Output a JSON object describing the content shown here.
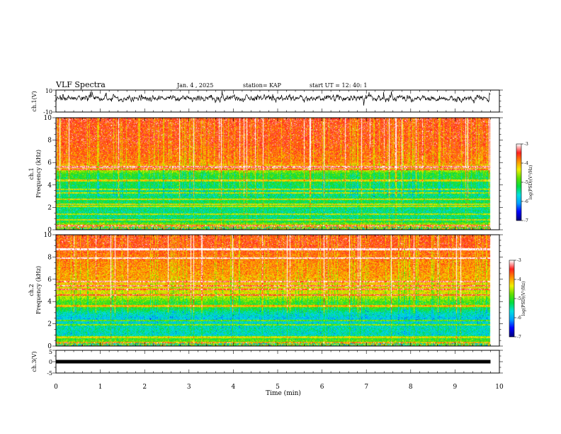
{
  "header": {
    "title": "VLF Spectra",
    "date": "Jan. 4 , 2025",
    "station": "station= KAP",
    "start": "start UT =  12: 40: 1"
  },
  "chart_data": [
    {
      "type": "line",
      "name": "ch1-waveform",
      "ylabel": "ch.1(V)",
      "ylim": [
        -10,
        10
      ],
      "yticks": [
        10,
        -10
      ],
      "xlim": [
        0,
        10
      ],
      "x_end": 9.8,
      "mean": 2.5,
      "spread": 2.0
    },
    {
      "type": "heatmap",
      "name": "ch1-spectrogram",
      "ylabel_top": "ch.1",
      "ylabel": "Frequency (kHz)",
      "ylim": [
        0,
        10
      ],
      "yticks": [
        0,
        2,
        4,
        6,
        8,
        10
      ],
      "xlim": [
        0,
        10
      ],
      "x_end": 9.8,
      "value_range": [
        -7,
        -3
      ],
      "colorbar": {
        "label": "log(PSD)(V²/Hz)",
        "ticks": [
          -3,
          -4,
          -5,
          -6,
          -7
        ]
      },
      "level_profile": [
        [
          0,
          -5.0
        ],
        [
          0.3,
          -4.2
        ],
        [
          0.8,
          -5.3
        ],
        [
          1.5,
          -5.4
        ],
        [
          2.0,
          -5.3
        ],
        [
          2.5,
          -5.2
        ],
        [
          3.0,
          -5.3
        ],
        [
          3.5,
          -5.4
        ],
        [
          4.0,
          -5.2
        ],
        [
          4.5,
          -5.1
        ],
        [
          5.0,
          -5.0
        ],
        [
          5.5,
          -4.2
        ],
        [
          6.0,
          -3.8
        ],
        [
          7.0,
          -3.7
        ],
        [
          8.0,
          -3.6
        ],
        [
          9.0,
          -3.6
        ],
        [
          10.0,
          -3.5
        ]
      ],
      "lines_khz": [
        0.4,
        0.9,
        1.4,
        2.1,
        2.3,
        2.7,
        3.3,
        3.6,
        4.4,
        5.4,
        5.6
      ]
    },
    {
      "type": "heatmap",
      "name": "ch2-spectrogram",
      "ylabel_top": "ch.2",
      "ylabel": "Frequency (kHz)",
      "ylim": [
        0,
        10
      ],
      "yticks": [
        0,
        2,
        4,
        6,
        8,
        10
      ],
      "xlim": [
        0,
        10
      ],
      "x_end": 9.8,
      "value_range": [
        -7,
        -3
      ],
      "colorbar": {
        "label": "log(PSD)(V²/Hz)",
        "ticks": [
          -3,
          -4,
          -5,
          -6,
          -7
        ]
      },
      "level_profile": [
        [
          0,
          -5.0
        ],
        [
          0.5,
          -4.8
        ],
        [
          1.0,
          -5.6
        ],
        [
          1.5,
          -5.5
        ],
        [
          2.0,
          -5.6
        ],
        [
          2.5,
          -5.8
        ],
        [
          3.0,
          -5.5
        ],
        [
          3.5,
          -5.0
        ],
        [
          4.0,
          -4.9
        ],
        [
          4.5,
          -4.4
        ],
        [
          5.0,
          -4.3
        ],
        [
          5.5,
          -4.2
        ],
        [
          6.0,
          -4.0
        ],
        [
          7.0,
          -3.9
        ],
        [
          8.0,
          -3.8
        ],
        [
          9.0,
          -3.6
        ],
        [
          10.0,
          -3.6
        ]
      ],
      "lines_khz": [
        0.3,
        0.8,
        1.9,
        2.3,
        3.6,
        4.6,
        5.1,
        5.4,
        5.8,
        7.9,
        8.7
      ]
    },
    {
      "type": "line",
      "name": "ch3-waveform",
      "ylabel": "ch.3(V)",
      "ylim": [
        -5,
        5
      ],
      "yticks": [
        5,
        0,
        -5
      ],
      "xlim": [
        0,
        10
      ],
      "x_end": 9.8,
      "mean": 0,
      "spread": 0.3
    }
  ],
  "x_axis": {
    "label": "Time (min)",
    "ticks": [
      0,
      1,
      2,
      3,
      4,
      5,
      6,
      7,
      8,
      9,
      10
    ]
  },
  "colorscale": [
    "#000080",
    "#0000ff",
    "#00a0ff",
    "#00e0e0",
    "#00dd40",
    "#60e000",
    "#f0f000",
    "#ff9000",
    "#ff2020",
    "#ffffff"
  ]
}
